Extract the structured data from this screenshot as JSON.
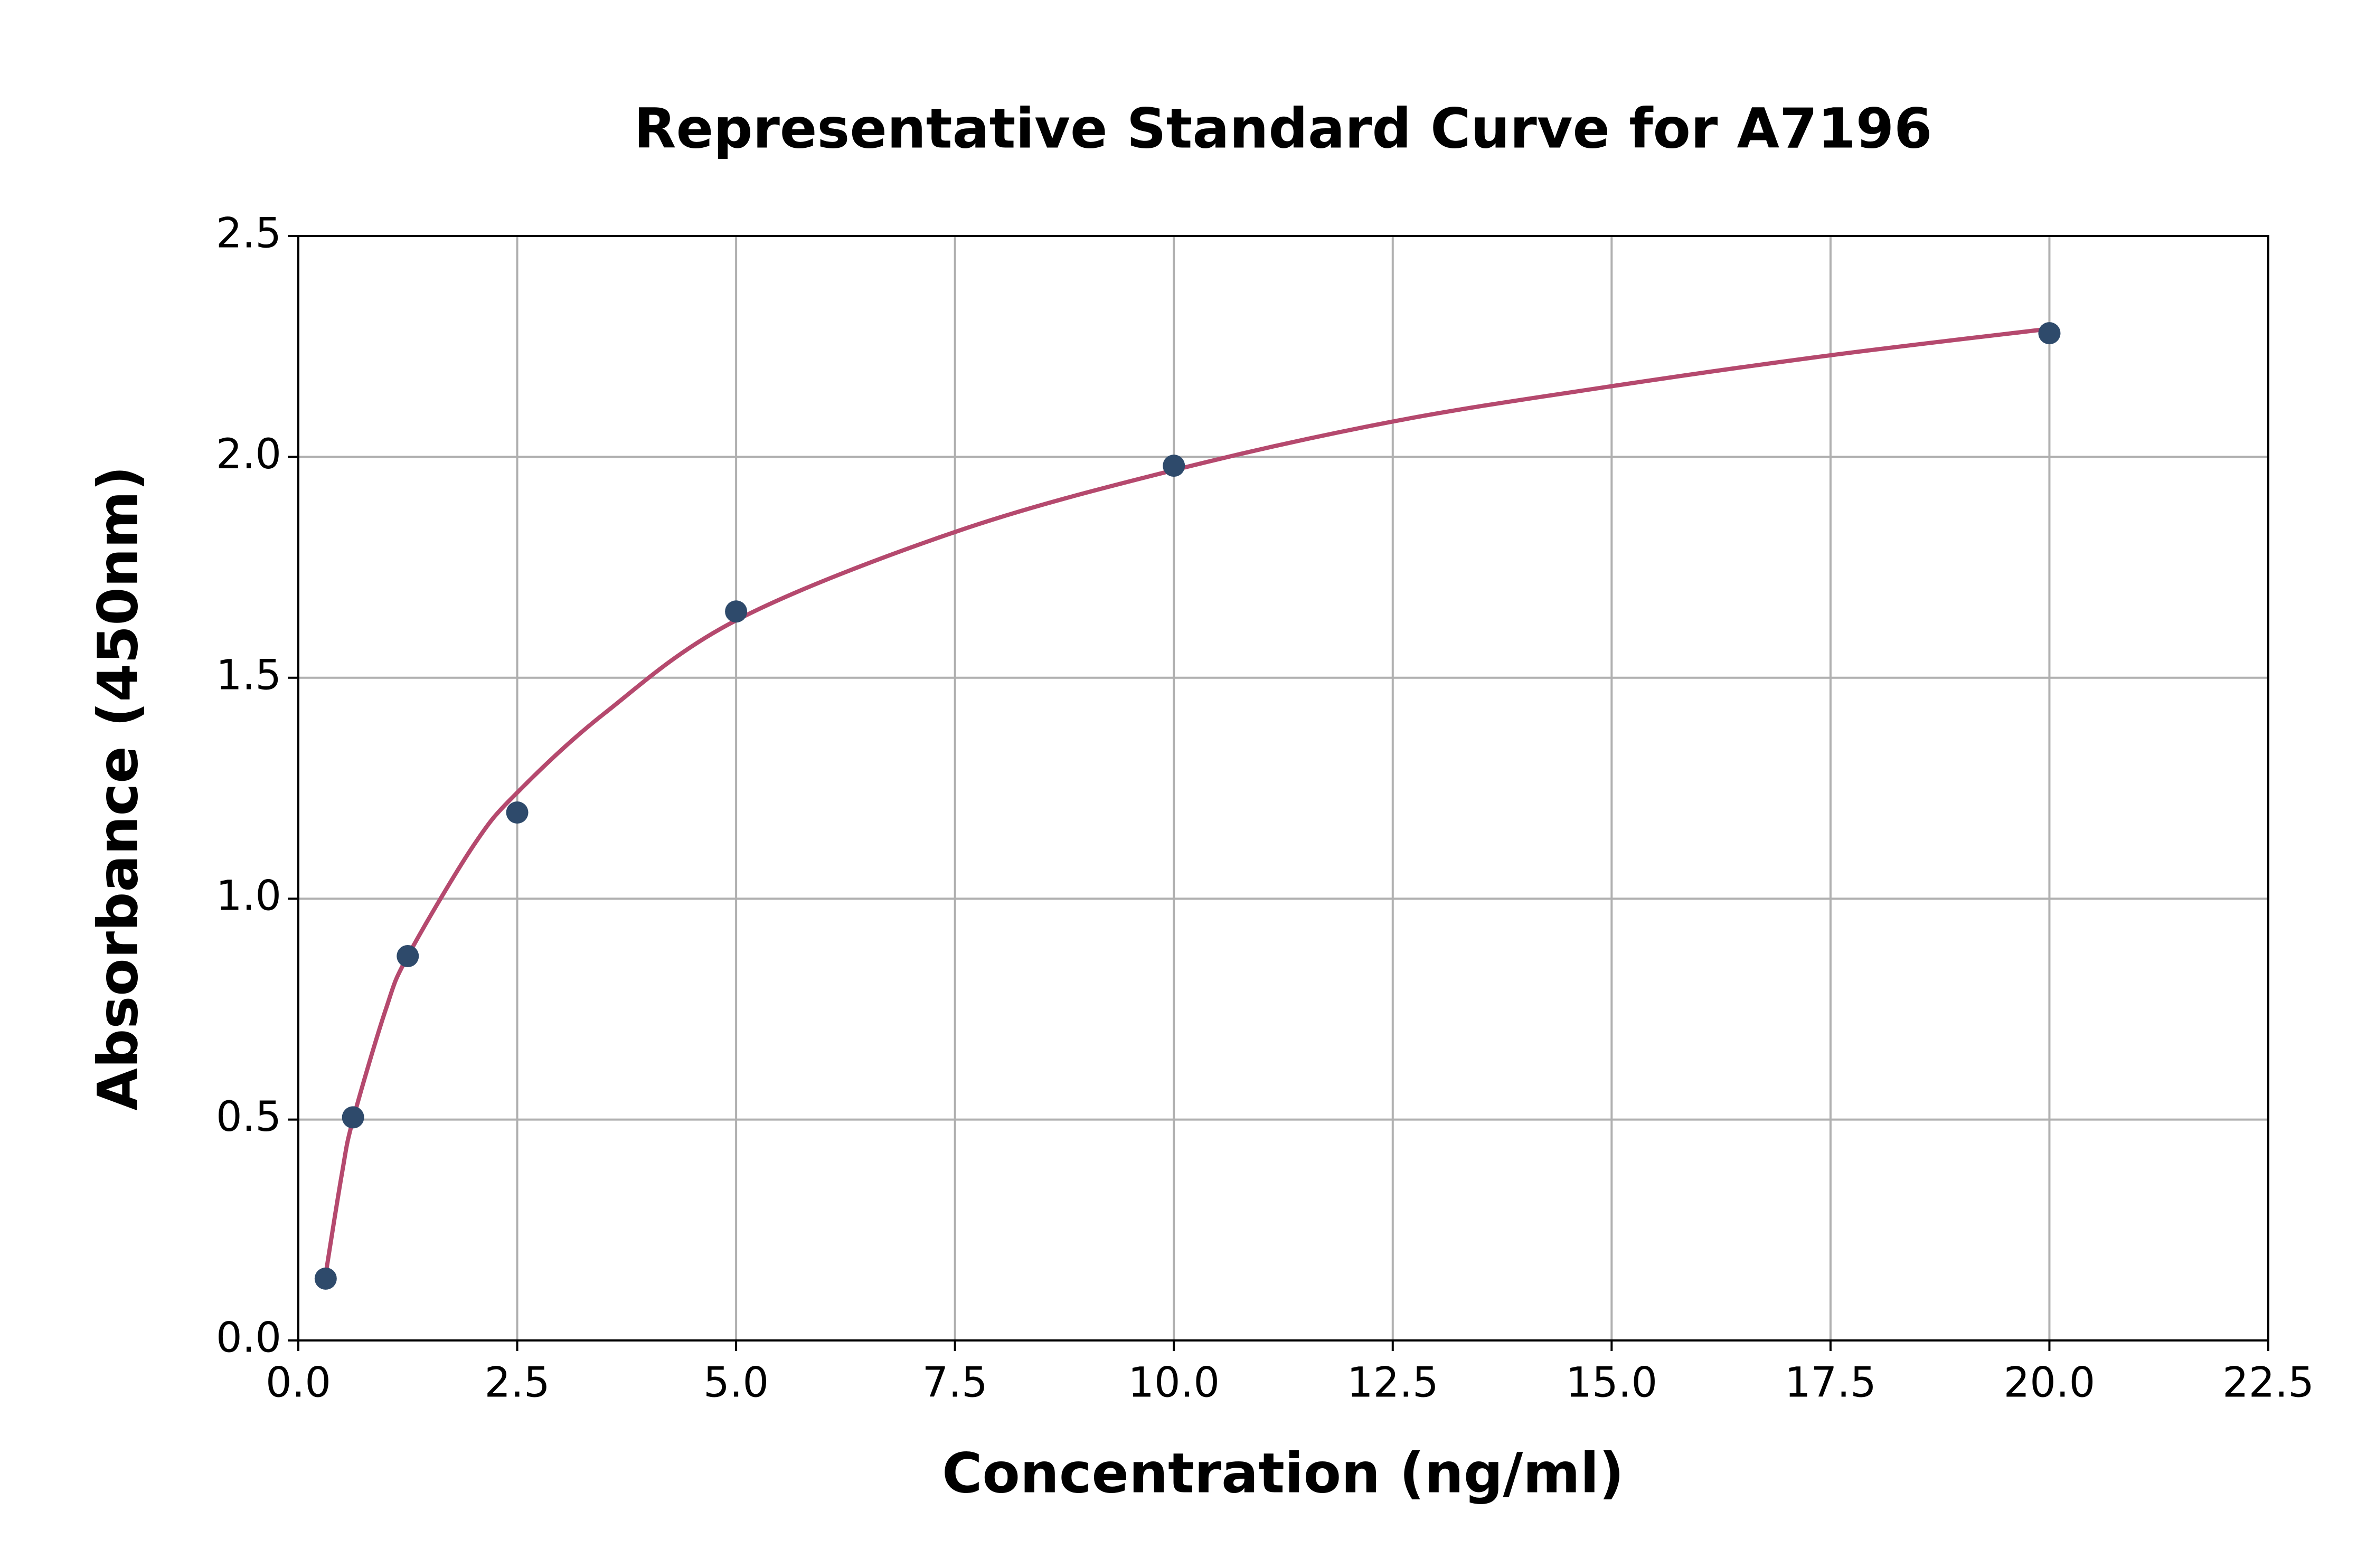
{
  "chart_data": {
    "type": "scatter",
    "title": "Representative Standard Curve for A7196",
    "xlabel": "Concentration (ng/ml)",
    "ylabel": "Absorbance (450nm)",
    "series": [
      {
        "type": "scatter",
        "color": "#2e4a6b",
        "x": [
          0.3125,
          0.625,
          1.25,
          2.5,
          5,
          10,
          20
        ],
        "values": [
          0.14,
          0.505,
          0.87,
          1.195,
          1.65,
          1.98,
          2.28
        ]
      },
      {
        "type": "line",
        "color": "#b5496e",
        "x": [
          0.3125,
          0.5,
          0.625,
          1.0,
          1.25,
          2.0,
          2.5,
          3.5,
          5,
          7.5,
          10,
          12.5,
          15,
          17.5,
          20
        ],
        "values": [
          0.15,
          0.38,
          0.5,
          0.75,
          0.87,
          1.12,
          1.24,
          1.42,
          1.63,
          1.83,
          1.97,
          2.08,
          2.16,
          2.23,
          2.29
        ]
      }
    ],
    "xlim": [
      0,
      22.5
    ],
    "xticks": [
      {
        "value": 0,
        "label": "0.0"
      },
      2.5,
      {
        "value": 5,
        "label": "5.0"
      },
      7.5,
      {
        "value": 10,
        "label": "10.0"
      },
      12.5,
      {
        "value": 15,
        "label": "15.0"
      },
      17.5,
      {
        "value": 20,
        "label": "20.0"
      },
      22.5
    ],
    "ylim": [
      0,
      2.5
    ],
    "yticks": [
      {
        "value": 0,
        "label": "0.0"
      },
      0.5,
      {
        "value": 1,
        "label": "1.0"
      },
      1.5,
      {
        "value": 2,
        "label": "2.0"
      },
      2.5
    ],
    "grid": true
  }
}
